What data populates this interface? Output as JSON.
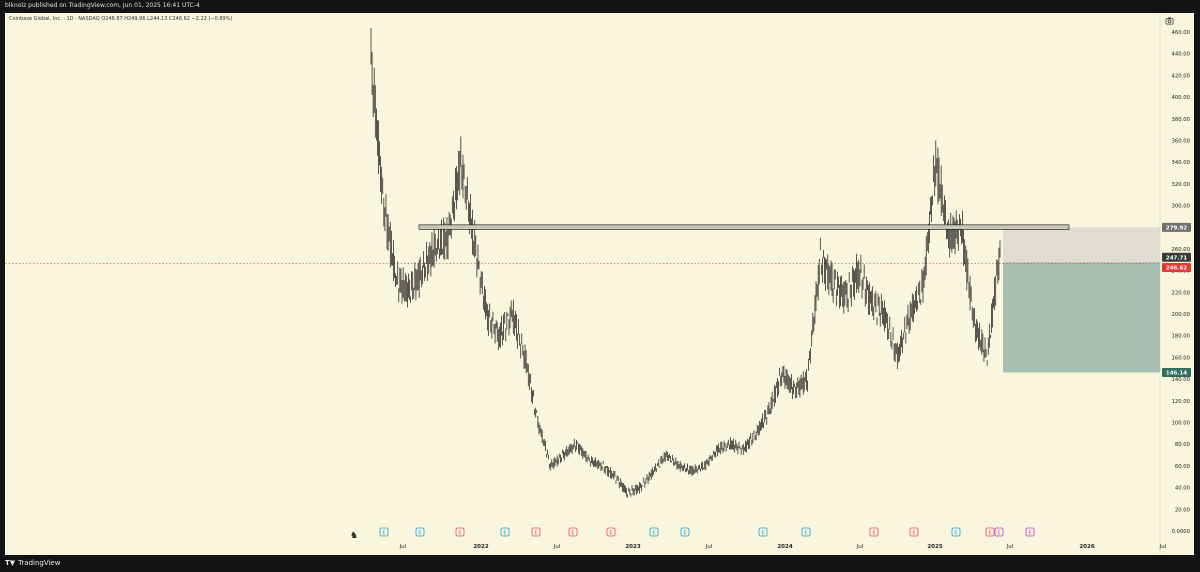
{
  "header": {
    "published_by": "blknolz published on TradingView.com, Jun 01, 2025 16:41 UTC-4"
  },
  "legend": {
    "text": "Coinbase Global, Inc. · 1D · NASDAQ  O246.87  H249.96  L244.13  C246.62  −2.22 (−0.89%)"
  },
  "price_scale": {
    "ticks": [
      "460.00",
      "440.00",
      "420.00",
      "400.00",
      "380.00",
      "360.00",
      "340.00",
      "320.00",
      "300.00",
      "280.00",
      "260.00",
      "240.00",
      "220.00",
      "200.00",
      "180.00",
      "160.00",
      "140.00",
      "120.00",
      "100.00",
      "80.00",
      "60.00",
      "40.00",
      "20.00",
      "0.0000"
    ],
    "badges": [
      {
        "label": "279.92",
        "value": 279.92,
        "color": "#707070"
      },
      {
        "label": "247.71",
        "value": 247.71,
        "color": "#3a3a3a"
      },
      {
        "label": "246.62",
        "value": 246.62,
        "color": "#e53935"
      },
      {
        "label": "146.14",
        "value": 146.14,
        "color": "#2e6e5f"
      }
    ]
  },
  "time_scale": {
    "labels": [
      {
        "text": "Jul",
        "bold": false
      },
      {
        "text": "2022",
        "bold": true
      },
      {
        "text": "Jul",
        "bold": false
      },
      {
        "text": "2023",
        "bold": true
      },
      {
        "text": "Jul",
        "bold": false
      },
      {
        "text": "2024",
        "bold": true
      },
      {
        "text": "Jul",
        "bold": false
      },
      {
        "text": "2025",
        "bold": true
      },
      {
        "text": "Jul",
        "bold": false
      },
      {
        "text": "2026",
        "bold": true
      },
      {
        "text": "Jul",
        "bold": false
      }
    ]
  },
  "event_markers": [
    "E",
    "E",
    "E",
    "E",
    "E",
    "E",
    "E",
    "E",
    "E",
    "E",
    "E",
    "E",
    "E",
    "E",
    "E",
    "E",
    "E"
  ],
  "brand": {
    "name": "TradingView",
    "logo": "tradingview-logo"
  },
  "colors": {
    "background": "#faf6dd",
    "candles": "#111111",
    "resistance_zone": "#d9d8cf",
    "target_zone": "#a7bfb0",
    "current_price": "#e53935",
    "earnings_blue": "#2a9fd6",
    "earnings_red": "#e0506a",
    "earnings_purple": "#c040d0"
  },
  "chart_data": {
    "type": "line",
    "title": "",
    "ylim": [
      0,
      460
    ],
    "x": [
      "2021-04",
      "2021-05",
      "2021-06",
      "2021-07",
      "2021-08",
      "2021-09",
      "2021-10",
      "2021-11",
      "2021-12",
      "2022-01",
      "2022-02",
      "2022-03",
      "2022-04",
      "2022-05",
      "2022-06",
      "2022-07",
      "2022-08",
      "2022-09",
      "2022-10",
      "2022-11",
      "2022-12",
      "2023-01",
      "2023-02",
      "2023-03",
      "2023-04",
      "2023-05",
      "2023-06",
      "2023-07",
      "2023-08",
      "2023-09",
      "2023-10",
      "2023-11",
      "2023-12",
      "2024-01",
      "2024-02",
      "2024-03",
      "2024-04",
      "2024-05",
      "2024-06",
      "2024-07",
      "2024-08",
      "2024-09",
      "2024-10",
      "2024-11",
      "2024-12",
      "2025-01",
      "2025-02",
      "2025-03",
      "2025-04",
      "2025-05"
    ],
    "series": [
      {
        "values": [
          430,
          300,
          230,
          220,
          240,
          260,
          270,
          340,
          270,
          200,
          180,
          200,
          160,
          100,
          60,
          70,
          80,
          65,
          60,
          50,
          35,
          40,
          55,
          70,
          60,
          55,
          60,
          75,
          80,
          75,
          90,
          110,
          145,
          130,
          140,
          250,
          230,
          215,
          240,
          210,
          200,
          160,
          200,
          225,
          340,
          270,
          280,
          190,
          160,
          260
        ]
      }
    ],
    "levels": [
      {
        "label": "279.92",
        "value": 279.92
      },
      {
        "label": "247.71",
        "value": 247.71
      },
      {
        "label": "246.62",
        "value": 246.62
      },
      {
        "label": "146.14",
        "value": 146.14
      }
    ]
  }
}
